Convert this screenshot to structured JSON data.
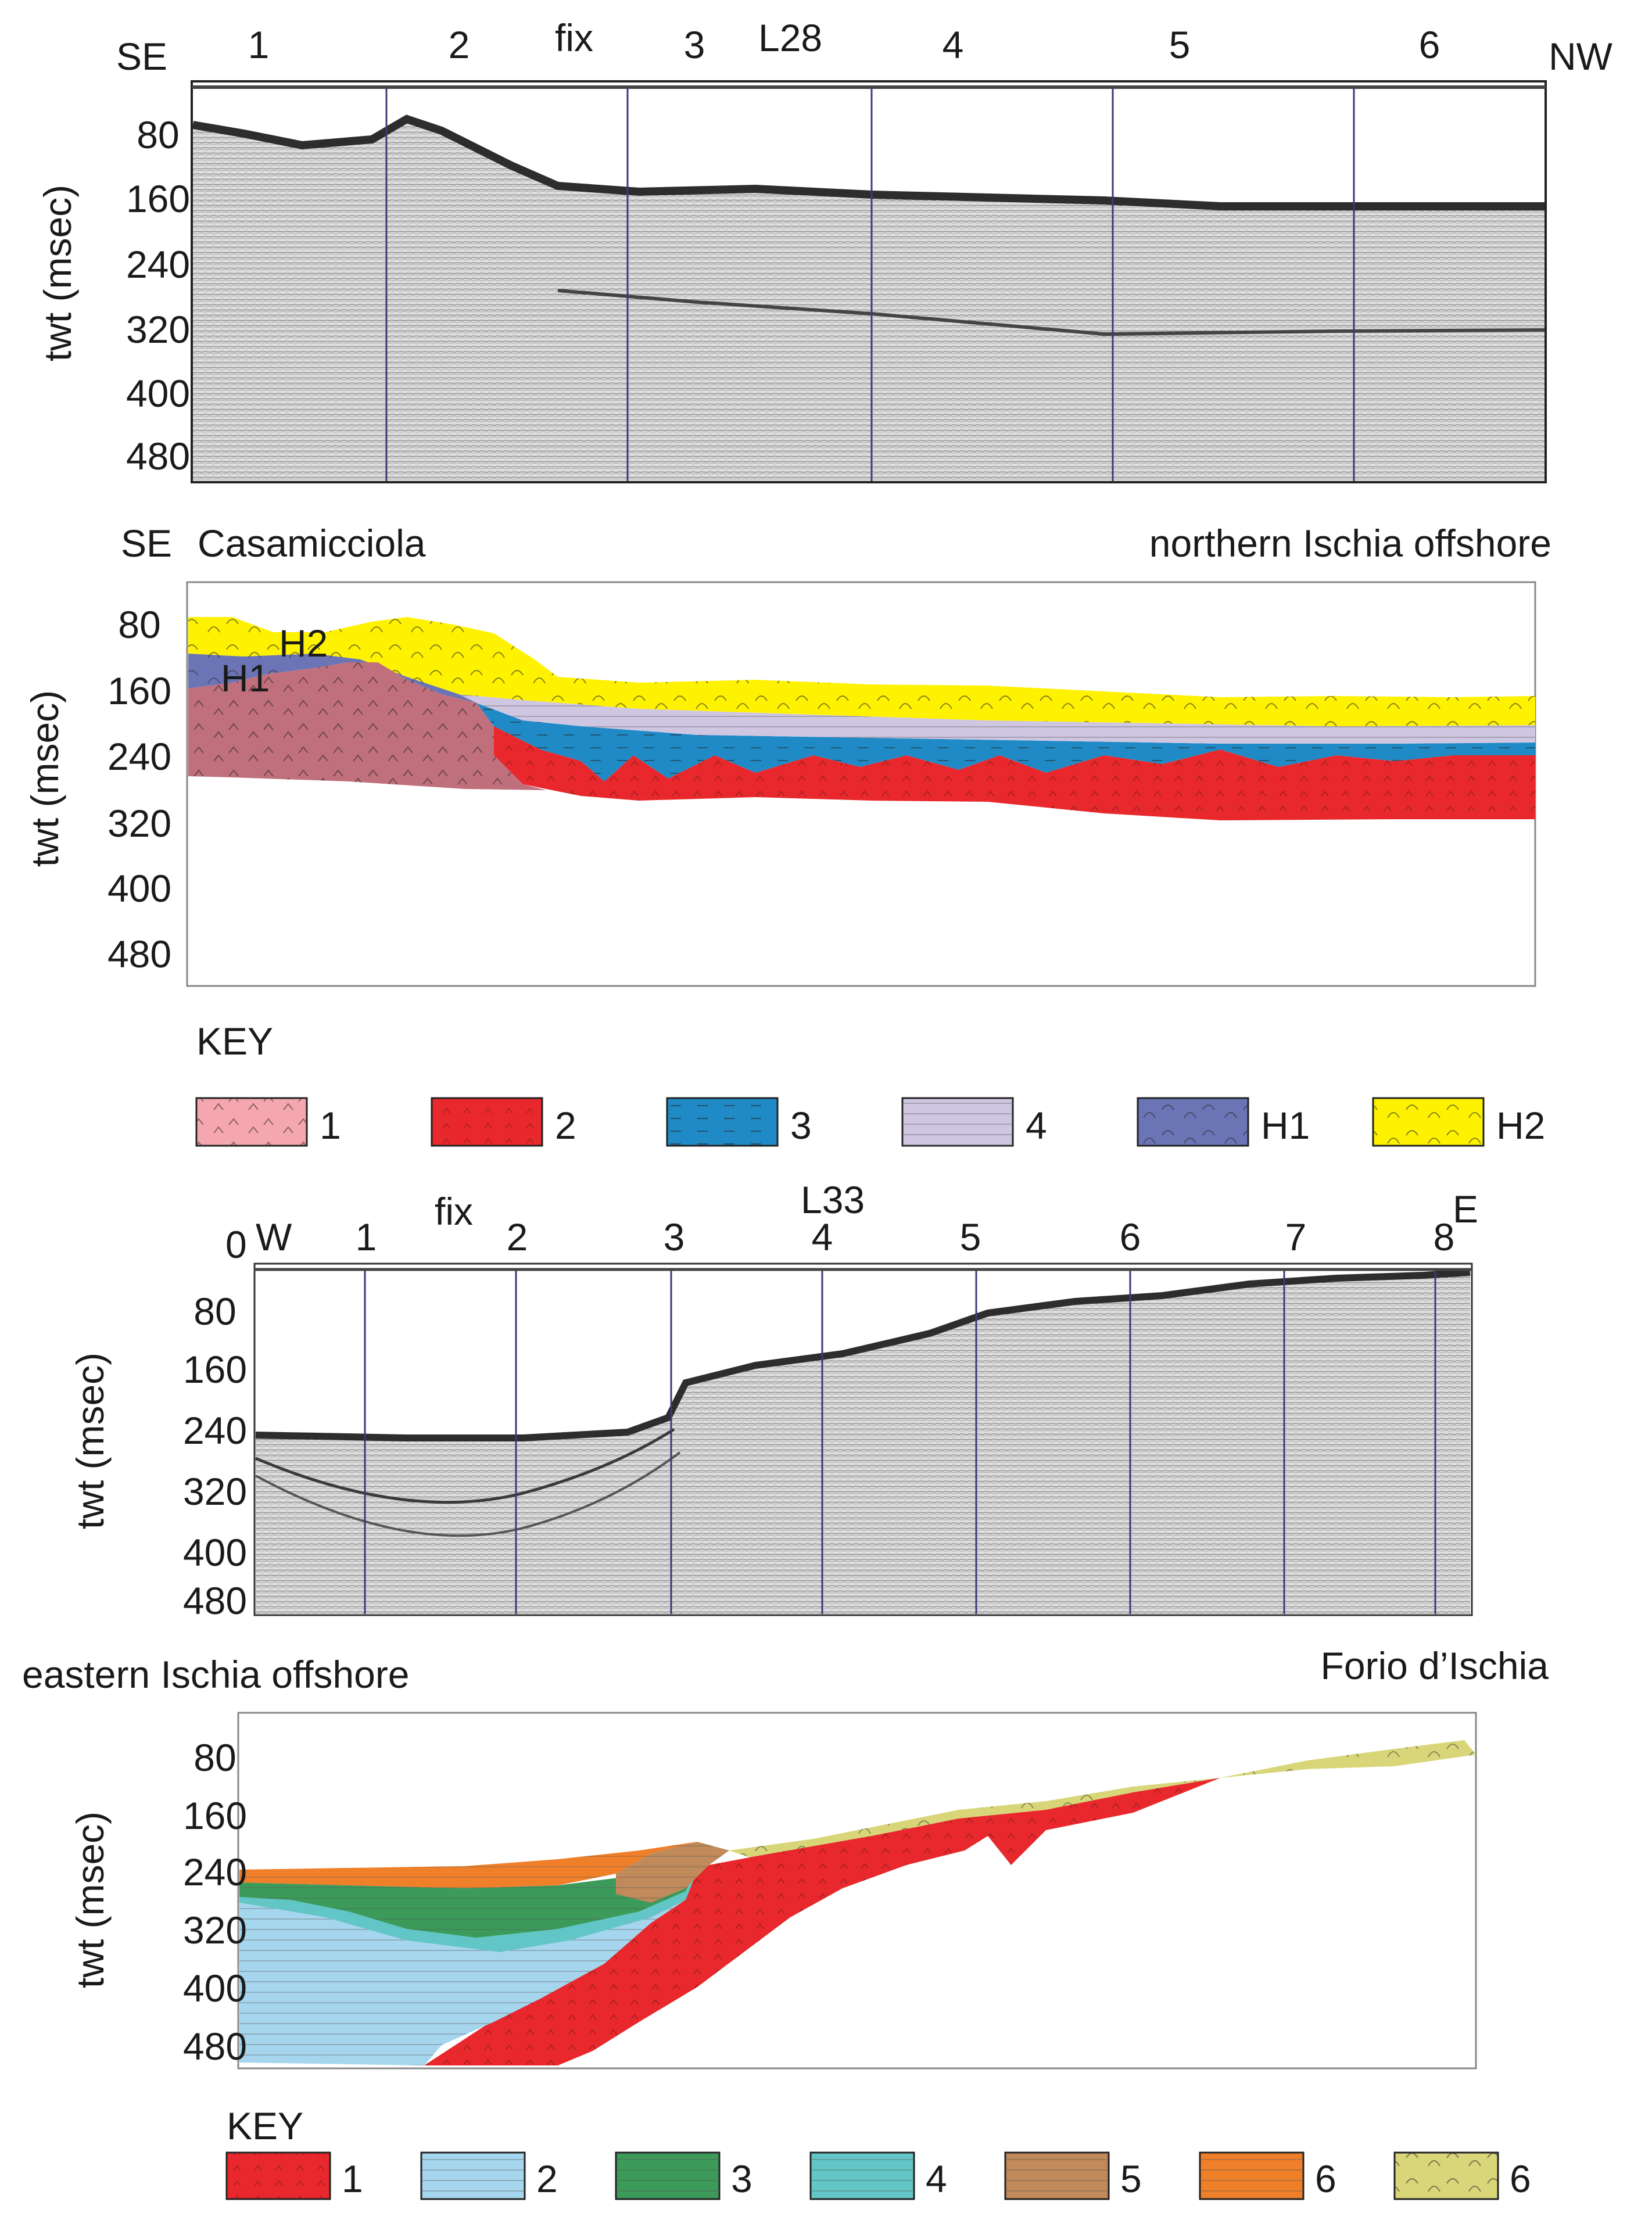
{
  "panel1": {
    "line_id": "L28",
    "dir_left": "SE",
    "dir_right": "NW",
    "fix_label": "fix",
    "fix_numbers": [
      "1",
      "2",
      "3",
      "4",
      "5",
      "6"
    ],
    "ylabel": "twt (msec)",
    "yticks": [
      "80",
      "160",
      "240",
      "320",
      "400",
      "480"
    ]
  },
  "panel2": {
    "dir_left": "SE",
    "label_left": "Casamicciola",
    "label_right": "northern Ischia offshore",
    "ylabel": "twt (msec)",
    "yticks": [
      "80",
      "160",
      "240",
      "320",
      "400",
      "480"
    ],
    "unit_labels": [
      "H1",
      "H2"
    ],
    "colors": {
      "unit1": "#c0707c",
      "unit2": "#e8282c",
      "unit3": "#1f8ac6",
      "unit4": "#cfc6e2",
      "H1": "#6b74b4",
      "H2": "#fff200"
    }
  },
  "key1": {
    "title": "KEY",
    "items": [
      {
        "label": "1",
        "color": "#f4a7ae"
      },
      {
        "label": "2",
        "color": "#e8282c"
      },
      {
        "label": "3",
        "color": "#1f8ac6"
      },
      {
        "label": "4",
        "color": "#cfc6e2"
      },
      {
        "label": "H1",
        "color": "#6b74b4"
      },
      {
        "label": "H2",
        "color": "#fff200"
      }
    ]
  },
  "panel3": {
    "line_id": "L33",
    "dir_left": "W",
    "dir_right": "E",
    "zero_label": "0",
    "fix_label": "fix",
    "fix_numbers": [
      "1",
      "2",
      "3",
      "4",
      "5",
      "6",
      "7",
      "8"
    ],
    "ylabel": "twt (msec)",
    "yticks": [
      "80",
      "160",
      "240",
      "320",
      "400",
      "480"
    ]
  },
  "panel4": {
    "label_left": "eastern Ischia offshore",
    "label_right": "Forio d’Ischia",
    "ylabel": "twt (msec)",
    "yticks": [
      "80",
      "160",
      "240",
      "320",
      "400",
      "480"
    ],
    "colors": {
      "unit1": "#e8282c",
      "unit2": "#a6d6ee",
      "unit3": "#3c9a5a",
      "unit4": "#63c6c6",
      "unit5": "#c08a5a",
      "unit6a": "#f07f2a",
      "unit6b": "#d8d678"
    }
  },
  "key2": {
    "title": "KEY",
    "items": [
      {
        "label": "1",
        "color": "#e8282c"
      },
      {
        "label": "2",
        "color": "#a6d6ee"
      },
      {
        "label": "3",
        "color": "#3c9a5a"
      },
      {
        "label": "4",
        "color": "#63c6c6"
      },
      {
        "label": "5",
        "color": "#c08a5a"
      },
      {
        "label": "6",
        "color": "#f07f2a"
      },
      {
        "label": "6",
        "color": "#d8d678"
      }
    ]
  }
}
